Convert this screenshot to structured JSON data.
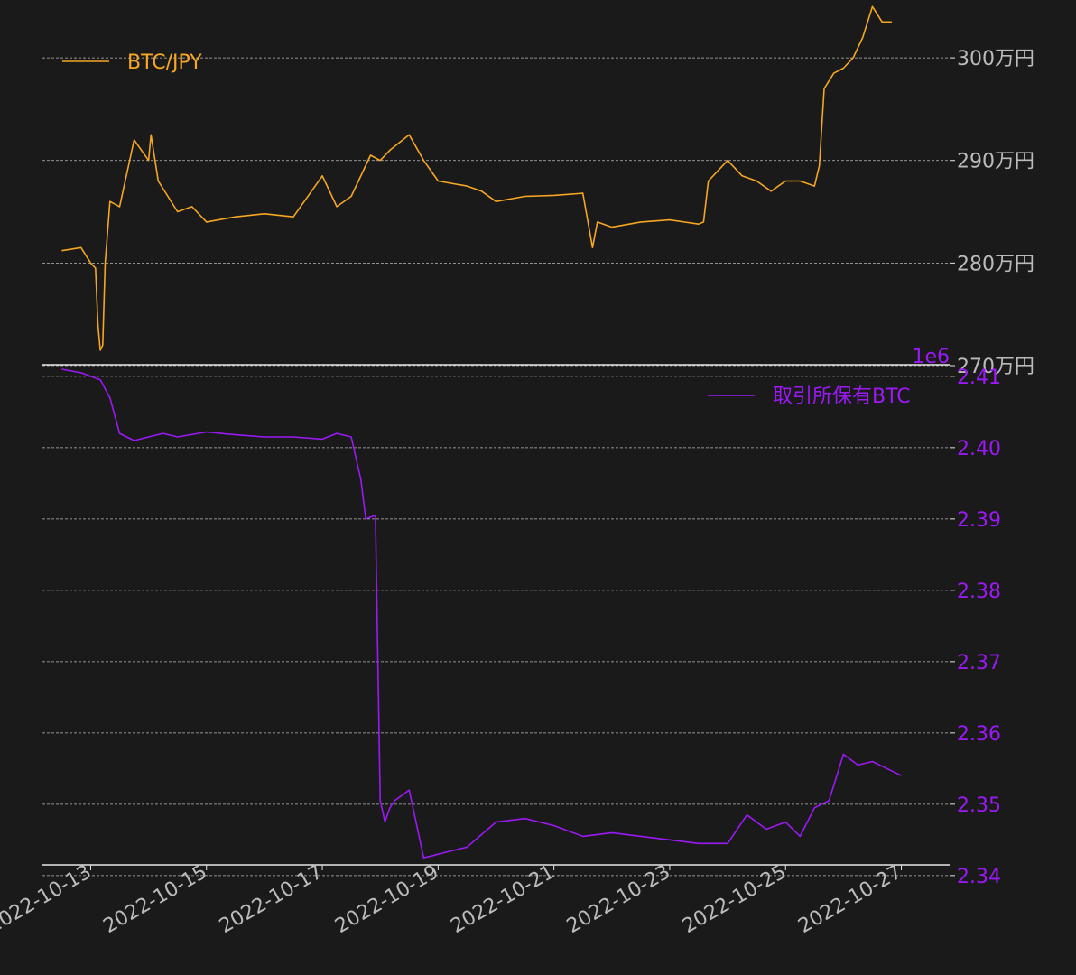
{
  "colors": {
    "background": "#1a1a1a",
    "btc_jpy": "#f5a623",
    "exchange_btc": "#9b19f5",
    "grid": "#bbbbbb",
    "axis_text": "#bbbbbb",
    "axis_line": "#e6e6e6"
  },
  "x_axis": {
    "ticks": [
      "2022-10-13",
      "2022-10-15",
      "2022-10-17",
      "2022-10-19",
      "2022-10-21",
      "2022-10-23",
      "2022-10-25",
      "2022-10-27"
    ],
    "range": [
      "2022-10-12T04:00",
      "2022-10-27T20:00"
    ]
  },
  "chart_data": [
    {
      "type": "line",
      "panel": "top",
      "legend": "top-left",
      "grid": true,
      "ylim": [
        2700000,
        3030000
      ],
      "y_ticks": [
        {
          "value": 2700000,
          "label": "270万円"
        },
        {
          "value": 2800000,
          "label": "280万円"
        },
        {
          "value": 2900000,
          "label": "290万円"
        },
        {
          "value": 3000000,
          "label": "300万円"
        }
      ],
      "series": [
        {
          "name": "BTC/JPY",
          "x": [
            "2022-10-12T12:00",
            "2022-10-12T20:00",
            "2022-10-13T00:00",
            "2022-10-13T02:00",
            "2022-10-13T03:00",
            "2022-10-13T04:00",
            "2022-10-13T05:00",
            "2022-10-13T06:00",
            "2022-10-13T08:00",
            "2022-10-13T12:00",
            "2022-10-13T18:00",
            "2022-10-14T00:00",
            "2022-10-14T01:00",
            "2022-10-14T04:00",
            "2022-10-14T12:00",
            "2022-10-14T18:00",
            "2022-10-15T00:00",
            "2022-10-15T12:00",
            "2022-10-16T00:00",
            "2022-10-16T12:00",
            "2022-10-17T00:00",
            "2022-10-17T06:00",
            "2022-10-17T12:00",
            "2022-10-17T20:00",
            "2022-10-18T00:00",
            "2022-10-18T04:00",
            "2022-10-18T12:00",
            "2022-10-18T18:00",
            "2022-10-19T00:00",
            "2022-10-19T12:00",
            "2022-10-19T18:00",
            "2022-10-20T00:00",
            "2022-10-20T12:00",
            "2022-10-21T00:00",
            "2022-10-21T12:00",
            "2022-10-21T16:00",
            "2022-10-21T18:00",
            "2022-10-22T00:00",
            "2022-10-22T12:00",
            "2022-10-23T00:00",
            "2022-10-23T12:00",
            "2022-10-23T14:00",
            "2022-10-23T16:00",
            "2022-10-24T00:00",
            "2022-10-24T06:00",
            "2022-10-24T12:00",
            "2022-10-24T18:00",
            "2022-10-25T00:00",
            "2022-10-25T06:00",
            "2022-10-25T12:00",
            "2022-10-25T14:00",
            "2022-10-25T16:00",
            "2022-10-25T20:00",
            "2022-10-26T00:00",
            "2022-10-26T04:00",
            "2022-10-26T08:00",
            "2022-10-26T12:00",
            "2022-10-26T16:00",
            "2022-10-26T20:00"
          ],
          "values": [
            2812000,
            2815000,
            2800000,
            2795000,
            2740000,
            2715000,
            2720000,
            2800000,
            2860000,
            2855000,
            2920000,
            2900000,
            2925000,
            2880000,
            2850000,
            2855000,
            2840000,
            2845000,
            2848000,
            2845000,
            2885000,
            2855000,
            2865000,
            2905000,
            2900000,
            2910000,
            2925000,
            2900000,
            2880000,
            2875000,
            2870000,
            2860000,
            2865000,
            2866000,
            2868000,
            2815000,
            2840000,
            2835000,
            2840000,
            2842000,
            2838000,
            2840000,
            2880000,
            2900000,
            2885000,
            2880000,
            2870000,
            2880000,
            2880000,
            2875000,
            2895000,
            2970000,
            2985000,
            2990000,
            3000000,
            3020000,
            3050000,
            3035000,
            3035000
          ]
        }
      ]
    },
    {
      "type": "line",
      "panel": "bottom",
      "legend": "top-right",
      "grid": true,
      "y_offset_label": "1e6",
      "ylim": [
        2.3415,
        2.4115
      ],
      "y_ticks": [
        {
          "value": 2.34,
          "label": "2.34"
        },
        {
          "value": 2.35,
          "label": "2.35"
        },
        {
          "value": 2.36,
          "label": "2.36"
        },
        {
          "value": 2.37,
          "label": "2.37"
        },
        {
          "value": 2.38,
          "label": "2.38"
        },
        {
          "value": 2.39,
          "label": "2.39"
        },
        {
          "value": 2.4,
          "label": "2.40"
        },
        {
          "value": 2.41,
          "label": "2.41"
        }
      ],
      "series": [
        {
          "name": "取引所保有BTC",
          "x": [
            "2022-10-12T12:00",
            "2022-10-12T20:00",
            "2022-10-13T00:00",
            "2022-10-13T04:00",
            "2022-10-13T08:00",
            "2022-10-13T12:00",
            "2022-10-13T18:00",
            "2022-10-14T00:00",
            "2022-10-14T06:00",
            "2022-10-14T12:00",
            "2022-10-15T00:00",
            "2022-10-15T12:00",
            "2022-10-16T00:00",
            "2022-10-16T12:00",
            "2022-10-17T00:00",
            "2022-10-17T06:00",
            "2022-10-17T12:00",
            "2022-10-17T16:00",
            "2022-10-17T18:00",
            "2022-10-17T22:00",
            "2022-10-18T00:00",
            "2022-10-18T02:00",
            "2022-10-18T04:00",
            "2022-10-18T06:00",
            "2022-10-18T12:00",
            "2022-10-18T18:00",
            "2022-10-18T22:00",
            "2022-10-19T00:00",
            "2022-10-19T12:00",
            "2022-10-20T00:00",
            "2022-10-20T12:00",
            "2022-10-21T00:00",
            "2022-10-21T12:00",
            "2022-10-22T00:00",
            "2022-10-22T12:00",
            "2022-10-23T00:00",
            "2022-10-23T12:00",
            "2022-10-24T00:00",
            "2022-10-24T08:00",
            "2022-10-24T16:00",
            "2022-10-25T00:00",
            "2022-10-25T06:00",
            "2022-10-25T12:00",
            "2022-10-25T18:00",
            "2022-10-26T00:00",
            "2022-10-26T06:00",
            "2022-10-26T12:00",
            "2022-10-26T18:00",
            "2022-10-27T00:00"
          ],
          "values": [
            2.411,
            2.4105,
            2.41,
            2.4095,
            2.407,
            2.402,
            2.401,
            2.4015,
            2.402,
            2.4015,
            2.4022,
            2.4018,
            2.4015,
            2.4015,
            2.4012,
            2.402,
            2.4015,
            2.3955,
            2.39,
            2.3905,
            2.3505,
            2.3475,
            2.3495,
            2.3505,
            2.352,
            2.3425,
            2.3428,
            2.343,
            2.344,
            2.3475,
            2.348,
            2.347,
            2.3455,
            2.346,
            2.3455,
            2.345,
            2.3445,
            2.3445,
            2.3485,
            2.3465,
            2.3475,
            2.3455,
            2.3495,
            2.3505,
            2.357,
            2.3555,
            2.356,
            2.355,
            2.354
          ]
        }
      ]
    }
  ]
}
